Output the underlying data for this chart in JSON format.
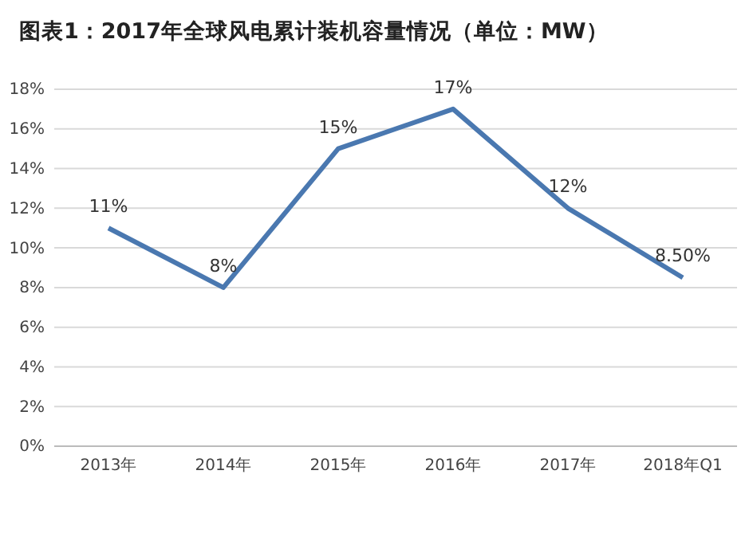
{
  "chart_data": {
    "type": "line",
    "title": "图表1：2017年全球风电累计装机容量情况（单位：MW）",
    "categories": [
      "2013年",
      "2014年",
      "2015年",
      "2016年",
      "2017年",
      "2018年Q1"
    ],
    "series": [
      {
        "color": "#4a78b0",
        "values": [
          11,
          8,
          15,
          17,
          12,
          8.5
        ],
        "value_labels": [
          "11%",
          "8%",
          "15%",
          "17%",
          "12%",
          "8.50%"
        ]
      }
    ],
    "ylim": [
      0,
      18
    ],
    "yticks": [
      {
        "value": 0,
        "label": "0%"
      },
      {
        "value": 2,
        "label": "2%"
      },
      {
        "value": 4,
        "label": "4%"
      },
      {
        "value": 6,
        "label": "6%"
      },
      {
        "value": 8,
        "label": "8%"
      },
      {
        "value": 10,
        "label": "10%"
      },
      {
        "value": 12,
        "label": "12%"
      },
      {
        "value": 14,
        "label": "14%"
      },
      {
        "value": 16,
        "label": "16%"
      },
      {
        "value": 18,
        "label": "18%"
      }
    ],
    "grid": "y",
    "marker": "none",
    "line_style": "solid"
  }
}
